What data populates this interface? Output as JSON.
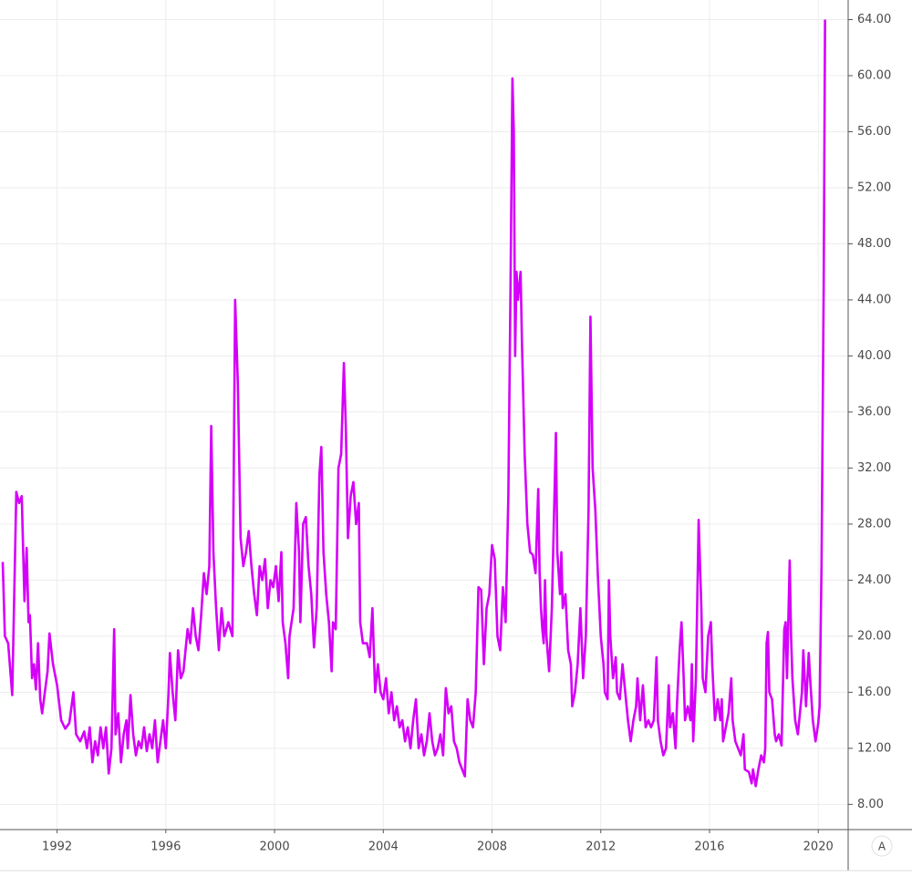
{
  "chart_data": {
    "type": "line",
    "color": "#d500f9",
    "grid": true,
    "xlim": [
      1989.9,
      2021.1
    ],
    "ylim": [
      6.2,
      65.4
    ],
    "xticks": [
      1992,
      1996,
      2000,
      2004,
      2008,
      2012,
      2016,
      2020
    ],
    "yticks": [
      {
        "value": 8,
        "label": "8.00"
      },
      {
        "value": 12,
        "label": "12.00"
      },
      {
        "value": 16,
        "label": "16.00"
      },
      {
        "value": 20,
        "label": "20.00"
      },
      {
        "value": 24,
        "label": "24.00"
      },
      {
        "value": 28,
        "label": "28.00"
      },
      {
        "value": 32,
        "label": "32.00"
      },
      {
        "value": 36,
        "label": "36.00"
      },
      {
        "value": 40,
        "label": "40.00"
      },
      {
        "value": 44,
        "label": "44.00"
      },
      {
        "value": 48,
        "label": "48.00"
      },
      {
        "value": 52,
        "label": "52.00"
      },
      {
        "value": 56,
        "label": "56.00"
      },
      {
        "value": 60,
        "label": "60.00"
      },
      {
        "value": 64,
        "label": "64.00"
      }
    ],
    "x": [
      1990.0,
      1990.08,
      1990.2,
      1990.35,
      1990.5,
      1990.6,
      1990.7,
      1990.8,
      1990.88,
      1990.95,
      1991.0,
      1991.08,
      1991.15,
      1991.22,
      1991.3,
      1991.38,
      1991.45,
      1991.55,
      1991.65,
      1991.72,
      1991.85,
      1992.0,
      1992.15,
      1992.3,
      1992.45,
      1992.6,
      1992.7,
      1992.85,
      1993.0,
      1993.1,
      1993.2,
      1993.3,
      1993.4,
      1993.5,
      1993.6,
      1993.7,
      1993.8,
      1993.9,
      1994.0,
      1994.1,
      1994.15,
      1994.25,
      1994.35,
      1994.45,
      1994.55,
      1994.6,
      1994.7,
      1994.8,
      1994.9,
      1995.0,
      1995.1,
      1995.2,
      1995.3,
      1995.4,
      1995.5,
      1995.6,
      1995.7,
      1995.8,
      1995.9,
      1996.0,
      1996.1,
      1996.15,
      1996.25,
      1996.35,
      1996.45,
      1996.55,
      1996.65,
      1996.8,
      1996.9,
      1997.0,
      1997.1,
      1997.2,
      1997.3,
      1997.4,
      1997.5,
      1997.6,
      1997.67,
      1997.75,
      1997.85,
      1997.95,
      1998.05,
      1998.15,
      1998.3,
      1998.45,
      1998.55,
      1998.65,
      1998.75,
      1998.85,
      1998.95,
      1999.05,
      1999.15,
      1999.25,
      1999.35,
      1999.45,
      1999.55,
      1999.65,
      1999.75,
      1999.85,
      1999.95,
      2000.05,
      2000.15,
      2000.25,
      2000.3,
      2000.4,
      2000.5,
      2000.55,
      2000.7,
      2000.8,
      2000.9,
      2000.95,
      2001.05,
      2001.15,
      2001.25,
      2001.35,
      2001.45,
      2001.55,
      2001.65,
      2001.72,
      2001.8,
      2001.9,
      2002.0,
      2002.1,
      2002.15,
      2002.25,
      2002.35,
      2002.45,
      2002.55,
      2002.62,
      2002.7,
      2002.8,
      2002.9,
      2003.0,
      2003.1,
      2003.15,
      2003.25,
      2003.4,
      2003.5,
      2003.6,
      2003.7,
      2003.8,
      2003.9,
      2004.0,
      2004.1,
      2004.2,
      2004.3,
      2004.4,
      2004.5,
      2004.6,
      2004.7,
      2004.8,
      2004.9,
      2005.0,
      2005.1,
      2005.2,
      2005.3,
      2005.4,
      2005.5,
      2005.6,
      2005.7,
      2005.8,
      2005.9,
      2006.0,
      2006.1,
      2006.2,
      2006.3,
      2006.4,
      2006.5,
      2006.6,
      2006.7,
      2006.8,
      2006.9,
      2007.0,
      2007.1,
      2007.2,
      2007.3,
      2007.4,
      2007.5,
      2007.6,
      2007.7,
      2007.8,
      2007.9,
      2008.0,
      2008.1,
      2008.2,
      2008.3,
      2008.4,
      2008.5,
      2008.6,
      2008.68,
      2008.75,
      2008.8,
      2008.85,
      2008.9,
      2008.95,
      2009.05,
      2009.1,
      2009.2,
      2009.3,
      2009.4,
      2009.5,
      2009.6,
      2009.7,
      2009.75,
      2009.8,
      2009.85,
      2009.9,
      2009.95,
      2010.0,
      2010.1,
      2010.2,
      2010.35,
      2010.4,
      2010.5,
      2010.55,
      2010.6,
      2010.7,
      2010.8,
      2010.9,
      2010.95,
      2011.05,
      2011.15,
      2011.25,
      2011.35,
      2011.45,
      2011.55,
      2011.62,
      2011.7,
      2011.8,
      2011.9,
      2012.0,
      2012.1,
      2012.15,
      2012.25,
      2012.3,
      2012.35,
      2012.45,
      2012.55,
      2012.6,
      2012.7,
      2012.8,
      2012.9,
      2013.0,
      2013.1,
      2013.2,
      2013.3,
      2013.35,
      2013.45,
      2013.55,
      2013.65,
      2013.75,
      2013.85,
      2013.95,
      2014.05,
      2014.1,
      2014.2,
      2014.3,
      2014.4,
      2014.5,
      2014.55,
      2014.65,
      2014.75,
      2014.8,
      2014.9,
      2014.97,
      2015.05,
      2015.1,
      2015.2,
      2015.3,
      2015.35,
      2015.4,
      2015.5,
      2015.6,
      2015.7,
      2015.75,
      2015.85,
      2015.95,
      2016.05,
      2016.1,
      2016.2,
      2016.3,
      2016.4,
      2016.45,
      2016.5,
      2016.6,
      2016.7,
      2016.8,
      2016.85,
      2016.95,
      2017.05,
      2017.15,
      2017.25,
      2017.3,
      2017.45,
      2017.55,
      2017.6,
      2017.7,
      2017.8,
      2017.9,
      2018.0,
      2018.05,
      2018.1,
      2018.15,
      2018.2,
      2018.3,
      2018.4,
      2018.45,
      2018.55,
      2018.65,
      2018.75,
      2018.8,
      2018.85,
      2018.95,
      2019.0,
      2019.05,
      2019.15,
      2019.25,
      2019.35,
      2019.4,
      2019.45,
      2019.55,
      2019.65,
      2019.7,
      2019.8,
      2019.9,
      2020.0,
      2020.05,
      2020.12,
      2020.2,
      2020.25
    ],
    "values": [
      25.3,
      20,
      19.5,
      15.8,
      30.3,
      29.5,
      30,
      22.5,
      26.3,
      21,
      21.5,
      17,
      18,
      16.2,
      19.5,
      15.5,
      14.5,
      16,
      17.5,
      20.2,
      18,
      16.5,
      14,
      13.4,
      13.8,
      16,
      13,
      12.5,
      13.2,
      12,
      13.5,
      11,
      12.5,
      11.5,
      13.5,
      12,
      13.5,
      10.2,
      12,
      20.5,
      13,
      14.5,
      11,
      13,
      14,
      12,
      15.8,
      13,
      11.5,
      12.5,
      12,
      13.5,
      11.8,
      13,
      12,
      14,
      11,
      12.5,
      14,
      12,
      16,
      18.8,
      16,
      14,
      19,
      17,
      17.5,
      20.5,
      19.5,
      22,
      20,
      19,
      21.5,
      24.5,
      23,
      25,
      35,
      26,
      22,
      19,
      22,
      20,
      21,
      20,
      44,
      38,
      27,
      25,
      26,
      27.5,
      25,
      23,
      21.5,
      25,
      24,
      25.5,
      22,
      24,
      23.5,
      25,
      22.5,
      26,
      21,
      19.5,
      17,
      20,
      22,
      29.5,
      26,
      21,
      28,
      28.5,
      25,
      23,
      19.2,
      22,
      31.5,
      33.5,
      26,
      23,
      21,
      17.5,
      21,
      20.5,
      32,
      33,
      39.5,
      35,
      27,
      30,
      31,
      28,
      29.5,
      21,
      19.5,
      19.5,
      18.5,
      22,
      16,
      18,
      16,
      15.5,
      17,
      14.5,
      16,
      14,
      15,
      13.5,
      14,
      12.5,
      13.5,
      12,
      14,
      15.5,
      12,
      13,
      11.5,
      12.5,
      14.5,
      12.5,
      11.5,
      12,
      13,
      11.5,
      16.3,
      14.5,
      15,
      12.5,
      12,
      11,
      10.5,
      10,
      15.5,
      14,
      13.5,
      16,
      23.5,
      23.3,
      18,
      22,
      23,
      26.5,
      25.5,
      20,
      19,
      23.5,
      21,
      30,
      45,
      59.8,
      56,
      40,
      46,
      44,
      46,
      41,
      33,
      28,
      26,
      25.8,
      24.5,
      30.5,
      24.5,
      22,
      20.5,
      19.5,
      24,
      20,
      17.5,
      22,
      34.5,
      26,
      23,
      26,
      22,
      23,
      19,
      18,
      15,
      16,
      18,
      22,
      17,
      20,
      29,
      42.8,
      32,
      29,
      24,
      20,
      18,
      16,
      15.5,
      24,
      20,
      17,
      18.5,
      16,
      15.5,
      18,
      16,
      14,
      12.5,
      14,
      15,
      17,
      14,
      16.5,
      13.5,
      14,
      13.5,
      14,
      18.5,
      14,
      12.5,
      11.5,
      12,
      16.5,
      13.5,
      14.5,
      12,
      15,
      19,
      21,
      17,
      14,
      15,
      14,
      18,
      12.5,
      17,
      28.3,
      22,
      17,
      16,
      20,
      21,
      18,
      14,
      15.5,
      14,
      15.5,
      12.5,
      13.5,
      14.5,
      17,
      14,
      12.5,
      12,
      11.5,
      13,
      10.5,
      10.3,
      9.5,
      10.5,
      9.3,
      10.5,
      11.5,
      11,
      12,
      19.5,
      20.3,
      16,
      15.5,
      13,
      12.5,
      13,
      12.2,
      20.5,
      21,
      17,
      25.4,
      20,
      17,
      14,
      13,
      15,
      16,
      19,
      15,
      18.8,
      17,
      14,
      12.5,
      13.8,
      15,
      25,
      45,
      64
    ]
  },
  "controls": {
    "auto_scale": "A"
  }
}
